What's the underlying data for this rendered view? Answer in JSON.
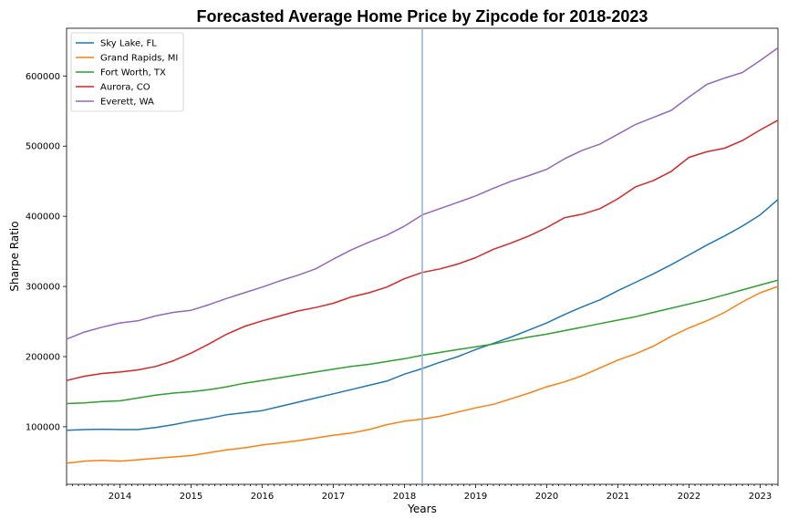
{
  "chart_data": {
    "type": "line",
    "title": "Forecasted Average Home Price by Zipcode for 2018-2023",
    "xlabel": "Years",
    "ylabel": "Sharpe Ratio",
    "xlim": [
      "2013-04",
      "2023-04"
    ],
    "ylim": [
      18000,
      668000
    ],
    "x_ticks": [
      "2014",
      "2015",
      "2016",
      "2017",
      "2018",
      "2019",
      "2020",
      "2021",
      "2022",
      "2023"
    ],
    "y_ticks": [
      100000,
      200000,
      300000,
      400000,
      500000,
      600000
    ],
    "grid": false,
    "legend_position": "top-left",
    "vertical_line": {
      "x": "2018-04",
      "color": "#8fb4d4"
    },
    "x": [
      "2013-04",
      "2013-07",
      "2013-10",
      "2014-01",
      "2014-04",
      "2014-07",
      "2014-10",
      "2015-01",
      "2015-04",
      "2015-07",
      "2015-10",
      "2016-01",
      "2016-04",
      "2016-07",
      "2016-10",
      "2017-01",
      "2017-04",
      "2017-07",
      "2017-10",
      "2018-01",
      "2018-04",
      "2018-07",
      "2018-10",
      "2019-01",
      "2019-04",
      "2019-07",
      "2019-10",
      "2020-01",
      "2020-04",
      "2020-07",
      "2020-10",
      "2021-01",
      "2021-04",
      "2021-07",
      "2021-10",
      "2022-01",
      "2022-04",
      "2022-07",
      "2022-10",
      "2023-01",
      "2023-04"
    ],
    "series": [
      {
        "name": "Sky Lake, FL",
        "color": "#1f77b4",
        "values": [
          95000,
          96000,
          96500,
          96000,
          96000,
          99000,
          103000,
          108000,
          112000,
          117000,
          120000,
          123000,
          129000,
          135000,
          141000,
          147000,
          153000,
          159000,
          165000,
          175000,
          183000,
          192000,
          200000,
          210000,
          219000,
          228000,
          238000,
          248000,
          260000,
          271000,
          281000,
          294000,
          306000,
          318000,
          331000,
          345000,
          359000,
          372000,
          386000,
          402000,
          424000
        ]
      },
      {
        "name": "Grand Rapids, MI",
        "color": "#ff7f0e",
        "values": [
          48000,
          51000,
          52000,
          51000,
          53000,
          55000,
          57000,
          59000,
          63000,
          67000,
          70000,
          74000,
          77000,
          80000,
          84000,
          88000,
          91000,
          96000,
          103000,
          108000,
          111000,
          115000,
          121000,
          127000,
          132000,
          140000,
          148000,
          157000,
          164000,
          173000,
          184000,
          195000,
          204000,
          215000,
          229000,
          241000,
          251000,
          263000,
          278000,
          291000,
          300000
        ]
      },
      {
        "name": "Fort Worth, TX",
        "color": "#2ca02c",
        "values": [
          133000,
          134000,
          136000,
          137000,
          141000,
          145000,
          148000,
          150000,
          153000,
          157000,
          162000,
          166000,
          170000,
          174000,
          178000,
          182000,
          186000,
          189000,
          193000,
          197000,
          202000,
          206000,
          210000,
          214000,
          218000,
          223000,
          228000,
          232000,
          237000,
          242000,
          247000,
          252000,
          257000,
          263000,
          269000,
          275000,
          281000,
          288000,
          295000,
          302000,
          309000
        ]
      },
      {
        "name": "Aurora, CO",
        "color": "#d62728",
        "values": [
          166000,
          172000,
          176000,
          178000,
          181000,
          186000,
          194000,
          205000,
          218000,
          232000,
          243000,
          251000,
          258000,
          265000,
          270000,
          276000,
          285000,
          291000,
          299000,
          311000,
          320000,
          325000,
          332000,
          341000,
          353000,
          362000,
          372000,
          384000,
          398000,
          403000,
          411000,
          425000,
          442000,
          451000,
          464000,
          484000,
          492000,
          497000,
          508000,
          523000,
          537000
        ]
      },
      {
        "name": "Everett, WA",
        "color": "#9467bd",
        "values": [
          225000,
          235000,
          242000,
          248000,
          251000,
          258000,
          263000,
          266000,
          274000,
          283000,
          291000,
          299000,
          308000,
          316000,
          325000,
          339000,
          352000,
          363000,
          373000,
          386000,
          402000,
          411000,
          420000,
          429000,
          440000,
          450000,
          458000,
          467000,
          482000,
          494000,
          503000,
          517000,
          531000,
          541000,
          551000,
          570000,
          588000,
          597000,
          605000,
          622000,
          640000
        ]
      }
    ]
  }
}
